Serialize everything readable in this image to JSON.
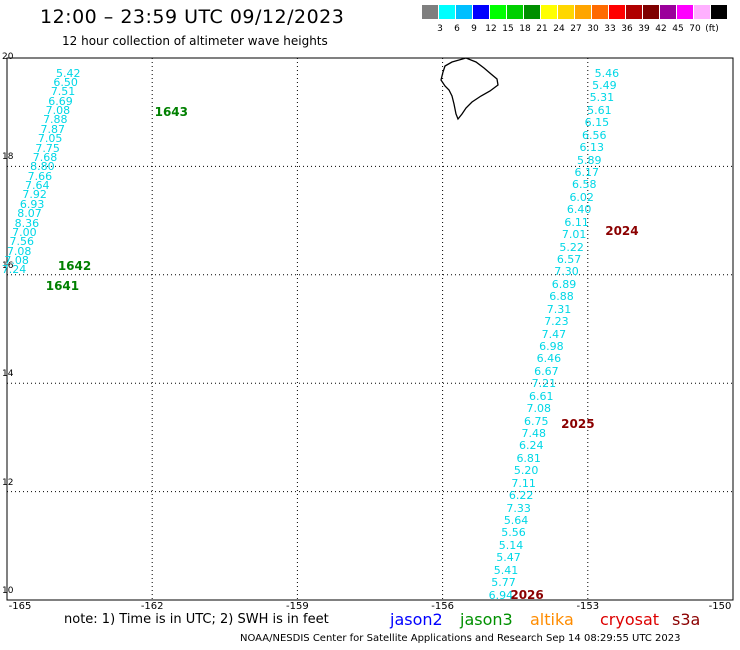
{
  "title": "12:00 – 23:59 UTC 09/12/2023",
  "subtitle": "12 hour collection of altimeter wave heights",
  "scale": {
    "colors": [
      "#7f7f7f",
      "#00ffff",
      "#00bfff",
      "#0000ff",
      "#00ff00",
      "#00d000",
      "#008f00",
      "#ffff00",
      "#ffd700",
      "#ffa500",
      "#ff6a00",
      "#ff0000",
      "#b00000",
      "#7f0000",
      "#9b009b",
      "#ff00ff",
      "#ffb0ff",
      "#000000"
    ],
    "labels": [
      "3",
      "6",
      "9",
      "12",
      "15",
      "18",
      "21",
      "24",
      "27",
      "30",
      "33",
      "36",
      "39",
      "42",
      "45",
      "70",
      "(ft)"
    ]
  },
  "axes": {
    "lat_labels": [
      "20",
      "18",
      "16",
      "14",
      "12",
      "10"
    ],
    "lat_values": [
      20,
      18,
      16,
      14,
      12,
      10
    ],
    "lon_labels": [
      "-165",
      "-162",
      "-159",
      "-156",
      "-153",
      "-150"
    ],
    "lon_values": [
      -165,
      -162,
      -159,
      -156,
      -153,
      -150
    ]
  },
  "island": "Big Island of Hawaii (coastline)",
  "track_left": {
    "values": [
      "5.42",
      "6.50",
      "7.51",
      "6.69",
      "7.08",
      "7.88",
      "7.87",
      "7.05",
      "7.75",
      "7.68",
      "8.80",
      "7.66",
      "7.64",
      "7.92",
      "6.93",
      "8.07",
      "8.36",
      "7.00",
      "7.56",
      "7.08",
      "7.08",
      "7.24"
    ],
    "lon_start": -163.74,
    "lon_end": -164.86,
    "lat_start": 19.73,
    "lat_end": 16.1,
    "passes": [
      {
        "label": "1643",
        "lon": -161.95,
        "lat": 19.0,
        "color": "#008000"
      },
      {
        "label": "1642",
        "lon": -163.95,
        "lat": 16.17,
        "color": "#008000"
      },
      {
        "label": "1641",
        "lon": -164.2,
        "lat": 15.8,
        "color": "#008000"
      }
    ]
  },
  "track_right": {
    "values": [
      "5.46",
      "5.49",
      "5.31",
      "5.61",
      "6.15",
      "6.56",
      "6.13",
      "5.89",
      "6.17",
      "6.58",
      "6.02",
      "6.40",
      "6.11",
      "7.01",
      "5.22",
      "6.57",
      "7.30",
      "6.89",
      "6.88",
      "7.31",
      "7.23",
      "7.47",
      "6.98",
      "6.46",
      "6.67",
      "7.21",
      "6.61",
      "7.08",
      "6.75",
      "7.48",
      "6.24",
      "6.81",
      "5.20",
      "7.11",
      "6.22",
      "7.33",
      "5.64",
      "5.56",
      "5.14",
      "5.47",
      "5.41",
      "5.77",
      "6.94"
    ],
    "lon_start": -152.61,
    "lon_end": -154.8,
    "lat_start": 19.73,
    "lat_end": 10.1,
    "passes": [
      {
        "label": "2024",
        "lon": -152.64,
        "lat": 16.8,
        "color": "#8b0000"
      },
      {
        "label": "2025",
        "lon": -153.55,
        "lat": 13.25,
        "color": "#8b0000"
      },
      {
        "label": "2026",
        "lon": -154.6,
        "lat": 10.1,
        "color": "#8b0000"
      }
    ]
  },
  "note": "note: 1) Time is in UTC; 2) SWH is in feet",
  "satellites": [
    {
      "name": "jason2",
      "color": "#0000ff"
    },
    {
      "name": "jason3",
      "color": "#009000"
    },
    {
      "name": "altika",
      "color": "#ff8c00"
    },
    {
      "name": "cryosat",
      "color": "#dd0000"
    },
    {
      "name": "s3a",
      "color": "#8b0000"
    }
  ],
  "credit": "NOAA/NESDIS Center for Satellite Applications and Research   Sep 14 08:29:55 UTC 2023"
}
